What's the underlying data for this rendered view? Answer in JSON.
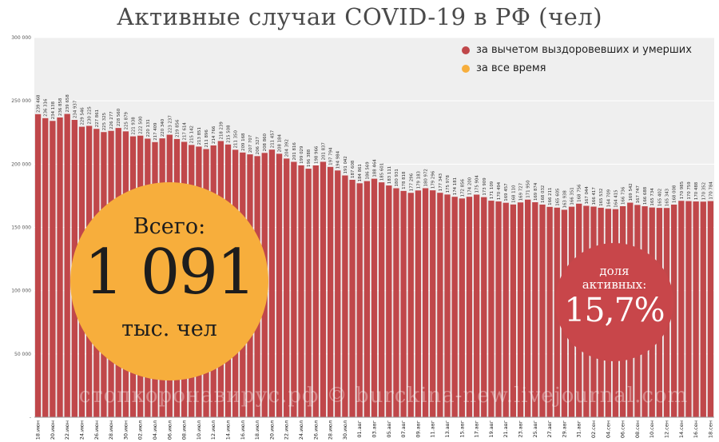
{
  "chart_data": {
    "type": "bar",
    "title": "Активные случаи COVID-19 в РФ (чел)",
    "ylim": [
      0,
      300000
    ],
    "yticks": [
      "-",
      "50 000",
      "100 000",
      "150 000",
      "200 000",
      "250 000",
      "300 000"
    ],
    "ytick_values": [
      0,
      50000,
      100000,
      150000,
      200000,
      250000,
      300000
    ],
    "categories": [
      "18.июн",
      "19.июн",
      "20.июн",
      "21.июн",
      "22.июн",
      "23.июн",
      "24.июн",
      "25.июн",
      "26.июн",
      "27.июн",
      "28.июн",
      "29.июн",
      "30.июн",
      "01.июл",
      "02.июл",
      "03.июл",
      "04.июл",
      "05.июл",
      "06.июл",
      "07.июл",
      "08.июл",
      "09.июл",
      "10.июл",
      "11.июл",
      "12.июл",
      "13.июл",
      "14.июл",
      "15.июл",
      "16.июл",
      "17.июл",
      "18.июл",
      "19.июл",
      "20.июл",
      "21.июл",
      "22.июл",
      "23.июл",
      "24.июл",
      "25.июл",
      "26.июл",
      "27.июл",
      "28.июл",
      "29.июл",
      "30.июл",
      "31.июл",
      "01.авг",
      "02.авг",
      "03.авг",
      "04.авг",
      "05.авг",
      "06.авг",
      "07.авг",
      "08.авг",
      "09.авг",
      "10.авг",
      "11.авг",
      "12.авг",
      "13.авг",
      "14.авг",
      "15.авг",
      "16.авг",
      "17.авг",
      "18.авг",
      "19.авг",
      "20.авг",
      "21.авг",
      "22.авг",
      "23.авг",
      "24.авг",
      "25.авг",
      "26.авг",
      "27.авг",
      "28.авг",
      "29.авг",
      "30.авг",
      "31.авг",
      "01.сен",
      "02.сен",
      "03.сен",
      "04.сен",
      "05.сен",
      "06.сен",
      "07.сен",
      "08.сен",
      "09.сен",
      "10.сен",
      "11.сен",
      "12.сен",
      "13.сен",
      "14.сен",
      "15.сен",
      "16.сен",
      "17.сен",
      "18.сен"
    ],
    "xtick_labels": [
      "18.июн",
      "20.июн",
      "22.июн",
      "24.июн",
      "26.июн",
      "28.июн",
      "30.июн",
      "02.июл",
      "04.июл",
      "06.июл",
      "08.июл",
      "10.июл",
      "12.июл",
      "14.июл",
      "16.июл",
      "18.июл",
      "20.июл",
      "22.июл",
      "24.июл",
      "26.июл",
      "28.июл",
      "30.июл",
      "01.авг",
      "03.авг",
      "05.авг",
      "07.авг",
      "09.авг",
      "11.авг",
      "13.авг",
      "15.авг",
      "17.авг",
      "19.авг",
      "21.авг",
      "23.авг",
      "25.авг",
      "27.авг",
      "29.авг",
      "31.авг",
      "02.сен",
      "04.сен",
      "06.сен",
      "08.сен",
      "10.сен",
      "12.сен",
      "14.сен",
      "16.сен",
      "18.сен"
    ],
    "series": [
      {
        "name": "за вычетом выздоровевших и умерших",
        "color": "#c0474a",
        "values": [
          239468,
          236316,
          234138,
          236858,
          239658,
          234937,
          229546,
          230225,
          227861,
          225325,
          226277,
          228560,
          225879,
          221938,
          222500,
          220131,
          217409,
          220340,
          223237,
          219856,
          217614,
          215142,
          213851,
          211896,
          214766,
          218239,
          215508,
          211350,
          209168,
          207707,
          206327,
          208860,
          211457,
          208184,
          204392,
          201816,
          199029,
          196388,
          198966,
          201837,
          197794,
          194984,
          191042,
          187608,
          184861,
          186569,
          188464,
          185601,
          183111,
          180931,
          178818,
          177296,
          179183,
          180972,
          179296,
          177343,
          175978,
          174181,
          172856,
          174200,
          175904,
          173909,
          171109,
          170494,
          169457,
          168110,
          169727,
          171950,
          169874,
          168032,
          166211,
          165605,
          163938,
          166351,
          168756,
          167044,
          166417,
          165532,
          164709,
          164415,
          166736,
          169542,
          167747,
          166688,
          165734,
          165402,
          165343,
          168008,
          170985,
          170759,
          170488,
          170352,
          170784
        ]
      },
      {
        "name": "за все время",
        "color": "#f7ae3c"
      }
    ]
  },
  "summary": {
    "total_caption": "Всего:",
    "total_value": "1 091",
    "total_unit": "тыс. чел",
    "share_caption_line1": "доля",
    "share_caption_line2": "активных:",
    "share_value": "15,7%"
  },
  "watermark": "стопкоронавирус.рф © burckina-new.livejournal.com",
  "colors": {
    "plot_bg": "#efefef",
    "bar": "#c0474a",
    "orange": "#f7ae3c",
    "red_circle": "#c8464a"
  }
}
